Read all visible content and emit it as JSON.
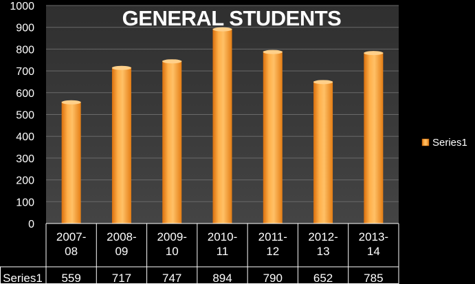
{
  "chart_data": {
    "type": "bar",
    "title": "GENERAL STUDENTS",
    "categories": [
      "2007-08",
      "2008-09",
      "2009-10",
      "2010-11",
      "2011-12",
      "2012-13",
      "2013-14"
    ],
    "category_lines": [
      [
        "2007-",
        "08"
      ],
      [
        "2008-",
        "09"
      ],
      [
        "2009-",
        "10"
      ],
      [
        "2010-",
        "11"
      ],
      [
        "2011-",
        "12"
      ],
      [
        "2012-",
        "13"
      ],
      [
        "2013-",
        "14"
      ]
    ],
    "series": [
      {
        "name": "Series1",
        "values": [
          559,
          717,
          747,
          894,
          790,
          652,
          785
        ]
      }
    ],
    "ylim": [
      0,
      1000
    ],
    "yticks": [
      0,
      100,
      200,
      300,
      400,
      500,
      600,
      700,
      800,
      900,
      1000
    ],
    "grid": true,
    "legend_position": "right",
    "data_table": true,
    "colors": {
      "background": "#000000",
      "plot_area": "#3a3a3a",
      "bar_light": "#ffc066",
      "bar_mid": "#f7941d",
      "bar_dark": "#d9700e",
      "gridline": "#6a6a6a",
      "table_border": "#ffffff"
    }
  }
}
